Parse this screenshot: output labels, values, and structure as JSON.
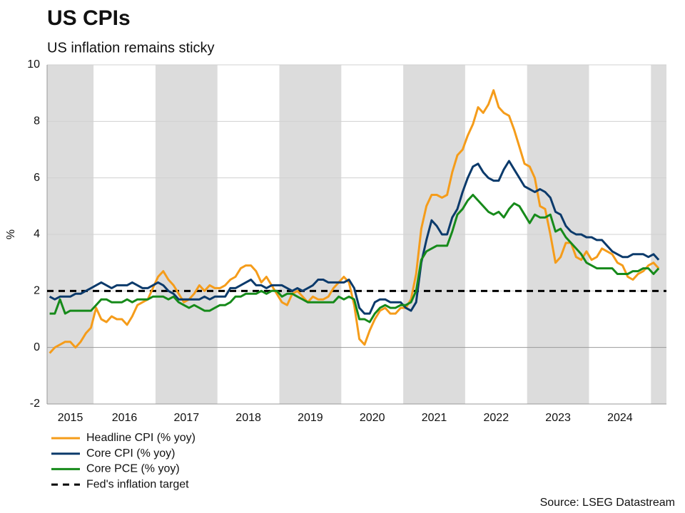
{
  "chart_data": {
    "type": "line",
    "title": "US CPIs",
    "subtitle": "US inflation remains sticky",
    "y_label": "%",
    "source": "Source: LSEG Datastream",
    "categories": [
      null,
      null,
      null,
      "2015",
      null,
      null,
      null,
      null,
      null,
      null,
      null,
      null,
      null,
      null,
      null,
      "2016",
      null,
      null,
      null,
      null,
      null,
      null,
      null,
      null,
      null,
      null,
      null,
      "2017",
      null,
      null,
      null,
      null,
      null,
      null,
      null,
      null,
      null,
      null,
      null,
      "2018",
      null,
      null,
      null,
      null,
      null,
      null,
      null,
      null,
      null,
      null,
      null,
      "2019",
      null,
      null,
      null,
      null,
      null,
      null,
      null,
      null,
      null,
      null,
      null,
      "2020",
      null,
      null,
      null,
      null,
      null,
      null,
      null,
      null,
      null,
      null,
      null,
      "2021",
      null,
      null,
      null,
      null,
      null,
      null,
      null,
      null,
      null,
      null,
      null,
      "2022",
      null,
      null,
      null,
      null,
      null,
      null,
      null,
      null,
      null,
      null,
      null,
      "2023",
      null,
      null,
      null,
      null,
      null,
      null,
      null,
      null,
      null,
      null,
      null,
      "2024",
      null,
      null,
      null,
      null,
      null,
      null,
      null
    ],
    "ylim": [
      -2,
      10
    ],
    "yticks": [
      -2,
      0,
      2,
      4,
      6,
      8,
      10
    ],
    "grid": true,
    "shading": "alternate-years",
    "shading_color": "#dcdcdc",
    "series": [
      {
        "name": "Headline CPI (% yoy)",
        "color": "#f59c1a",
        "values": [
          -0.2,
          0.0,
          0.1,
          0.2,
          0.2,
          0.0,
          0.2,
          0.5,
          0.7,
          1.4,
          1.0,
          0.9,
          1.1,
          1.0,
          1.0,
          0.8,
          1.1,
          1.5,
          1.6,
          1.7,
          2.1,
          2.5,
          2.7,
          2.4,
          2.2,
          1.9,
          1.6,
          1.7,
          1.9,
          2.2,
          2.0,
          2.2,
          2.1,
          2.1,
          2.2,
          2.4,
          2.5,
          2.8,
          2.9,
          2.9,
          2.7,
          2.3,
          2.5,
          2.2,
          1.9,
          1.6,
          1.5,
          1.9,
          2.0,
          1.8,
          1.6,
          1.8,
          1.7,
          1.7,
          1.8,
          2.1,
          2.3,
          2.5,
          2.3,
          1.5,
          0.3,
          0.1,
          0.6,
          1.0,
          1.3,
          1.4,
          1.2,
          1.2,
          1.4,
          1.4,
          1.7,
          2.6,
          4.2,
          5.0,
          5.4,
          5.4,
          5.3,
          5.4,
          6.2,
          6.8,
          7.0,
          7.5,
          7.9,
          8.5,
          8.3,
          8.6,
          9.1,
          8.5,
          8.3,
          8.2,
          7.7,
          7.1,
          6.5,
          6.4,
          6.0,
          5.0,
          4.9,
          4.0,
          3.0,
          3.2,
          3.7,
          3.7,
          3.2,
          3.1,
          3.4,
          3.1,
          3.2,
          3.5,
          3.4,
          3.3,
          3.0,
          2.9,
          2.5,
          2.4,
          2.6,
          2.7,
          2.9,
          3.0,
          2.8
        ]
      },
      {
        "name": "Core CPI (% yoy)",
        "color": "#0b3a6b",
        "values": [
          1.8,
          1.7,
          1.8,
          1.8,
          1.8,
          1.9,
          1.9,
          2.0,
          2.1,
          2.2,
          2.3,
          2.2,
          2.1,
          2.2,
          2.2,
          2.2,
          2.3,
          2.2,
          2.1,
          2.1,
          2.2,
          2.3,
          2.2,
          2.0,
          1.9,
          1.7,
          1.7,
          1.7,
          1.7,
          1.7,
          1.8,
          1.7,
          1.8,
          1.8,
          1.8,
          2.1,
          2.1,
          2.2,
          2.3,
          2.4,
          2.2,
          2.2,
          2.1,
          2.2,
          2.2,
          2.2,
          2.1,
          2.0,
          2.1,
          2.0,
          2.1,
          2.2,
          2.4,
          2.4,
          2.3,
          2.3,
          2.3,
          2.3,
          2.4,
          2.1,
          1.4,
          1.2,
          1.2,
          1.6,
          1.7,
          1.7,
          1.6,
          1.6,
          1.6,
          1.4,
          1.3,
          1.6,
          3.0,
          3.8,
          4.5,
          4.3,
          4.0,
          4.0,
          4.6,
          4.9,
          5.5,
          6.0,
          6.4,
          6.5,
          6.2,
          6.0,
          5.9,
          5.9,
          6.3,
          6.6,
          6.3,
          6.0,
          5.7,
          5.6,
          5.5,
          5.6,
          5.5,
          5.3,
          4.8,
          4.7,
          4.3,
          4.1,
          4.0,
          4.0,
          3.9,
          3.9,
          3.8,
          3.8,
          3.6,
          3.4,
          3.3,
          3.2,
          3.2,
          3.3,
          3.3,
          3.3,
          3.2,
          3.3,
          3.1
        ]
      },
      {
        "name": "Core PCE (% yoy)",
        "color": "#168a1a",
        "values": [
          1.2,
          1.2,
          1.7,
          1.2,
          1.3,
          1.3,
          1.3,
          1.3,
          1.3,
          1.5,
          1.7,
          1.7,
          1.6,
          1.6,
          1.6,
          1.7,
          1.6,
          1.7,
          1.7,
          1.7,
          1.8,
          1.8,
          1.8,
          1.7,
          1.8,
          1.6,
          1.5,
          1.4,
          1.5,
          1.4,
          1.3,
          1.3,
          1.4,
          1.5,
          1.5,
          1.6,
          1.8,
          1.8,
          1.9,
          1.9,
          1.9,
          2.0,
          1.9,
          2.0,
          2.0,
          1.8,
          1.9,
          1.9,
          1.8,
          1.7,
          1.6,
          1.6,
          1.6,
          1.6,
          1.6,
          1.6,
          1.8,
          1.7,
          1.8,
          1.7,
          1.0,
          1.0,
          0.9,
          1.2,
          1.4,
          1.5,
          1.4,
          1.4,
          1.5,
          1.5,
          1.6,
          2.0,
          3.1,
          3.4,
          3.5,
          3.6,
          3.6,
          3.6,
          4.1,
          4.7,
          4.9,
          5.2,
          5.4,
          5.2,
          5.0,
          4.8,
          4.7,
          4.8,
          4.6,
          4.9,
          5.1,
          5.0,
          4.7,
          4.4,
          4.7,
          4.6,
          4.6,
          4.7,
          4.1,
          4.2,
          3.9,
          3.7,
          3.5,
          3.3,
          3.0,
          2.9,
          2.8,
          2.8,
          2.8,
          2.8,
          2.6,
          2.6,
          2.6,
          2.7,
          2.7,
          2.8,
          2.8,
          2.6,
          2.8
        ]
      }
    ],
    "reference_line": {
      "name": "Fed's inflation target",
      "value": 2,
      "color": "#000000",
      "dashed": true
    }
  }
}
